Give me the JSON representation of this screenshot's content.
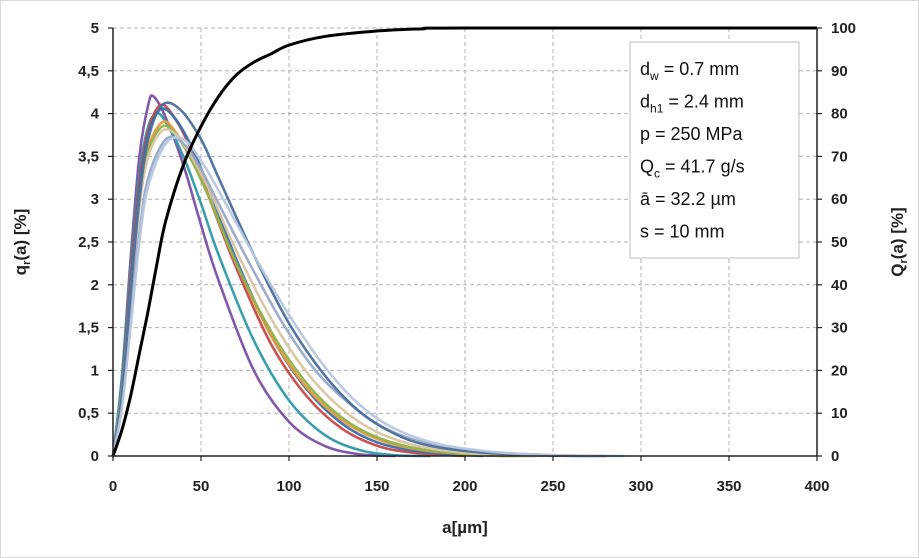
{
  "chart_data": {
    "type": "line",
    "xlabel": "a[µm]",
    "ylabel_left": "q_r(a) [%]",
    "ylabel_right": "Q_r(a) [%]",
    "xlim": [
      0,
      400
    ],
    "ylim_left": [
      0,
      5
    ],
    "ylim_right": [
      0,
      100
    ],
    "x_ticks": [
      "0",
      "50",
      "100",
      "150",
      "200",
      "250",
      "300",
      "350",
      "400"
    ],
    "y_left_ticks": [
      "0",
      "0,5",
      "1",
      "1,5",
      "2",
      "2,5",
      "3",
      "3,5",
      "4",
      "4,5",
      "5"
    ],
    "y_right_ticks": [
      "0",
      "10",
      "20",
      "30",
      "40",
      "50",
      "60",
      "70",
      "80",
      "90",
      "100"
    ],
    "grid": true,
    "legend_placement": "top-right",
    "annotation_lines": [
      "d_w = 0.7 mm",
      "d_h1 = 2.4 mm",
      "p = 250 MPa",
      "Q_c = 41.7 g/s",
      "ā = 32.2 µm",
      "s = 10 mm"
    ],
    "cumulative": {
      "axis": "right",
      "color": "#000000",
      "points": [
        [
          0,
          0
        ],
        [
          5,
          6
        ],
        [
          10,
          14
        ],
        [
          15,
          24
        ],
        [
          20,
          34
        ],
        [
          25,
          45
        ],
        [
          30,
          55
        ],
        [
          40,
          68
        ],
        [
          50,
          77
        ],
        [
          60,
          84
        ],
        [
          70,
          89
        ],
        [
          80,
          92
        ],
        [
          90,
          94
        ],
        [
          100,
          96
        ],
        [
          120,
          98
        ],
        [
          150,
          99.3
        ],
        [
          175,
          99.8
        ],
        [
          200,
          100
        ],
        [
          400,
          100
        ]
      ]
    },
    "density_series": [
      {
        "color": "#7b4fa8",
        "points": [
          [
            0,
            0
          ],
          [
            5,
            0.9
          ],
          [
            10,
            2.3
          ],
          [
            15,
            3.5
          ],
          [
            20,
            4.1
          ],
          [
            23,
            4.2
          ],
          [
            30,
            3.95
          ],
          [
            40,
            3.4
          ],
          [
            50,
            2.7
          ],
          [
            60,
            2.05
          ],
          [
            80,
            1.0
          ],
          [
            100,
            0.4
          ],
          [
            120,
            0.12
          ],
          [
            140,
            0.02
          ],
          [
            160,
            0
          ]
        ]
      },
      {
        "color": "#2e9aa8",
        "points": [
          [
            0,
            0
          ],
          [
            5,
            0.9
          ],
          [
            10,
            2.2
          ],
          [
            15,
            3.3
          ],
          [
            20,
            3.85
          ],
          [
            25,
            4.0
          ],
          [
            30,
            3.9
          ],
          [
            40,
            3.5
          ],
          [
            50,
            2.95
          ],
          [
            60,
            2.35
          ],
          [
            80,
            1.35
          ],
          [
            100,
            0.65
          ],
          [
            120,
            0.25
          ],
          [
            140,
            0.07
          ],
          [
            160,
            0.01
          ],
          [
            180,
            0
          ]
        ]
      },
      {
        "color": "#c84848",
        "points": [
          [
            0,
            0
          ],
          [
            5,
            0.8
          ],
          [
            10,
            2.1
          ],
          [
            15,
            3.2
          ],
          [
            20,
            3.8
          ],
          [
            27,
            4.1
          ],
          [
            35,
            3.95
          ],
          [
            45,
            3.55
          ],
          [
            55,
            3.0
          ],
          [
            70,
            2.2
          ],
          [
            90,
            1.3
          ],
          [
            110,
            0.7
          ],
          [
            130,
            0.32
          ],
          [
            150,
            0.12
          ],
          [
            170,
            0.04
          ],
          [
            200,
            0
          ]
        ]
      },
      {
        "color": "#3a6fb0",
        "points": [
          [
            0,
            0
          ],
          [
            5,
            0.8
          ],
          [
            10,
            2.0
          ],
          [
            15,
            3.1
          ],
          [
            20,
            3.75
          ],
          [
            27,
            4.05
          ],
          [
            35,
            3.95
          ],
          [
            45,
            3.6
          ],
          [
            55,
            3.1
          ],
          [
            70,
            2.3
          ],
          [
            90,
            1.4
          ],
          [
            110,
            0.78
          ],
          [
            130,
            0.38
          ],
          [
            150,
            0.16
          ],
          [
            175,
            0.05
          ],
          [
            210,
            0
          ]
        ]
      },
      {
        "color": "#e89a3a",
        "points": [
          [
            0,
            0
          ],
          [
            5,
            0.75
          ],
          [
            10,
            1.9
          ],
          [
            15,
            3.0
          ],
          [
            20,
            3.6
          ],
          [
            28,
            3.9
          ],
          [
            35,
            3.8
          ],
          [
            45,
            3.45
          ],
          [
            55,
            3.0
          ],
          [
            70,
            2.25
          ],
          [
            90,
            1.4
          ],
          [
            110,
            0.8
          ],
          [
            130,
            0.42
          ],
          [
            150,
            0.2
          ],
          [
            175,
            0.07
          ],
          [
            210,
            0.01
          ],
          [
            230,
            0
          ]
        ]
      },
      {
        "color": "#8fb34a",
        "points": [
          [
            0,
            0
          ],
          [
            5,
            0.75
          ],
          [
            10,
            1.9
          ],
          [
            15,
            2.95
          ],
          [
            20,
            3.55
          ],
          [
            28,
            3.85
          ],
          [
            36,
            3.75
          ],
          [
            46,
            3.4
          ],
          [
            56,
            2.95
          ],
          [
            70,
            2.25
          ],
          [
            90,
            1.45
          ],
          [
            110,
            0.85
          ],
          [
            130,
            0.45
          ],
          [
            150,
            0.22
          ],
          [
            175,
            0.08
          ],
          [
            210,
            0.01
          ],
          [
            240,
            0
          ]
        ]
      },
      {
        "color": "#d9c5a0",
        "points": [
          [
            0,
            0
          ],
          [
            5,
            0.7
          ],
          [
            10,
            1.85
          ],
          [
            15,
            2.9
          ],
          [
            20,
            3.5
          ],
          [
            28,
            3.8
          ],
          [
            36,
            3.75
          ],
          [
            46,
            3.45
          ],
          [
            56,
            3.05
          ],
          [
            70,
            2.4
          ],
          [
            90,
            1.6
          ],
          [
            110,
            0.98
          ],
          [
            130,
            0.55
          ],
          [
            150,
            0.28
          ],
          [
            175,
            0.11
          ],
          [
            210,
            0.02
          ],
          [
            250,
            0
          ]
        ]
      },
      {
        "color": "#9aa9c9",
        "points": [
          [
            0,
            0
          ],
          [
            5,
            0.6
          ],
          [
            10,
            1.6
          ],
          [
            15,
            2.6
          ],
          [
            20,
            3.25
          ],
          [
            30,
            3.7
          ],
          [
            40,
            3.65
          ],
          [
            50,
            3.35
          ],
          [
            60,
            2.95
          ],
          [
            75,
            2.35
          ],
          [
            95,
            1.6
          ],
          [
            115,
            1.0
          ],
          [
            135,
            0.6
          ],
          [
            155,
            0.32
          ],
          [
            180,
            0.14
          ],
          [
            210,
            0.05
          ],
          [
            250,
            0.01
          ],
          [
            280,
            0
          ]
        ]
      },
      {
        "color": "#4b6f9e",
        "points": [
          [
            0,
            0
          ],
          [
            5,
            0.7
          ],
          [
            10,
            1.9
          ],
          [
            15,
            3.0
          ],
          [
            20,
            3.7
          ],
          [
            28,
            4.1
          ],
          [
            38,
            4.05
          ],
          [
            50,
            3.7
          ],
          [
            60,
            3.25
          ],
          [
            80,
            2.35
          ],
          [
            100,
            1.55
          ],
          [
            120,
            0.95
          ],
          [
            140,
            0.52
          ],
          [
            160,
            0.26
          ],
          [
            180,
            0.12
          ],
          [
            210,
            0.04
          ],
          [
            250,
            0.005
          ],
          [
            280,
            0
          ]
        ]
      },
      {
        "color": "#b7c7de",
        "points": [
          [
            0,
            0
          ],
          [
            5,
            0.55
          ],
          [
            10,
            1.5
          ],
          [
            15,
            2.5
          ],
          [
            20,
            3.15
          ],
          [
            30,
            3.65
          ],
          [
            40,
            3.7
          ],
          [
            50,
            3.45
          ],
          [
            60,
            3.1
          ],
          [
            80,
            2.35
          ],
          [
            100,
            1.65
          ],
          [
            120,
            1.05
          ],
          [
            140,
            0.6
          ],
          [
            160,
            0.32
          ],
          [
            185,
            0.14
          ],
          [
            215,
            0.05
          ],
          [
            250,
            0.01
          ],
          [
            290,
            0
          ]
        ]
      }
    ]
  }
}
